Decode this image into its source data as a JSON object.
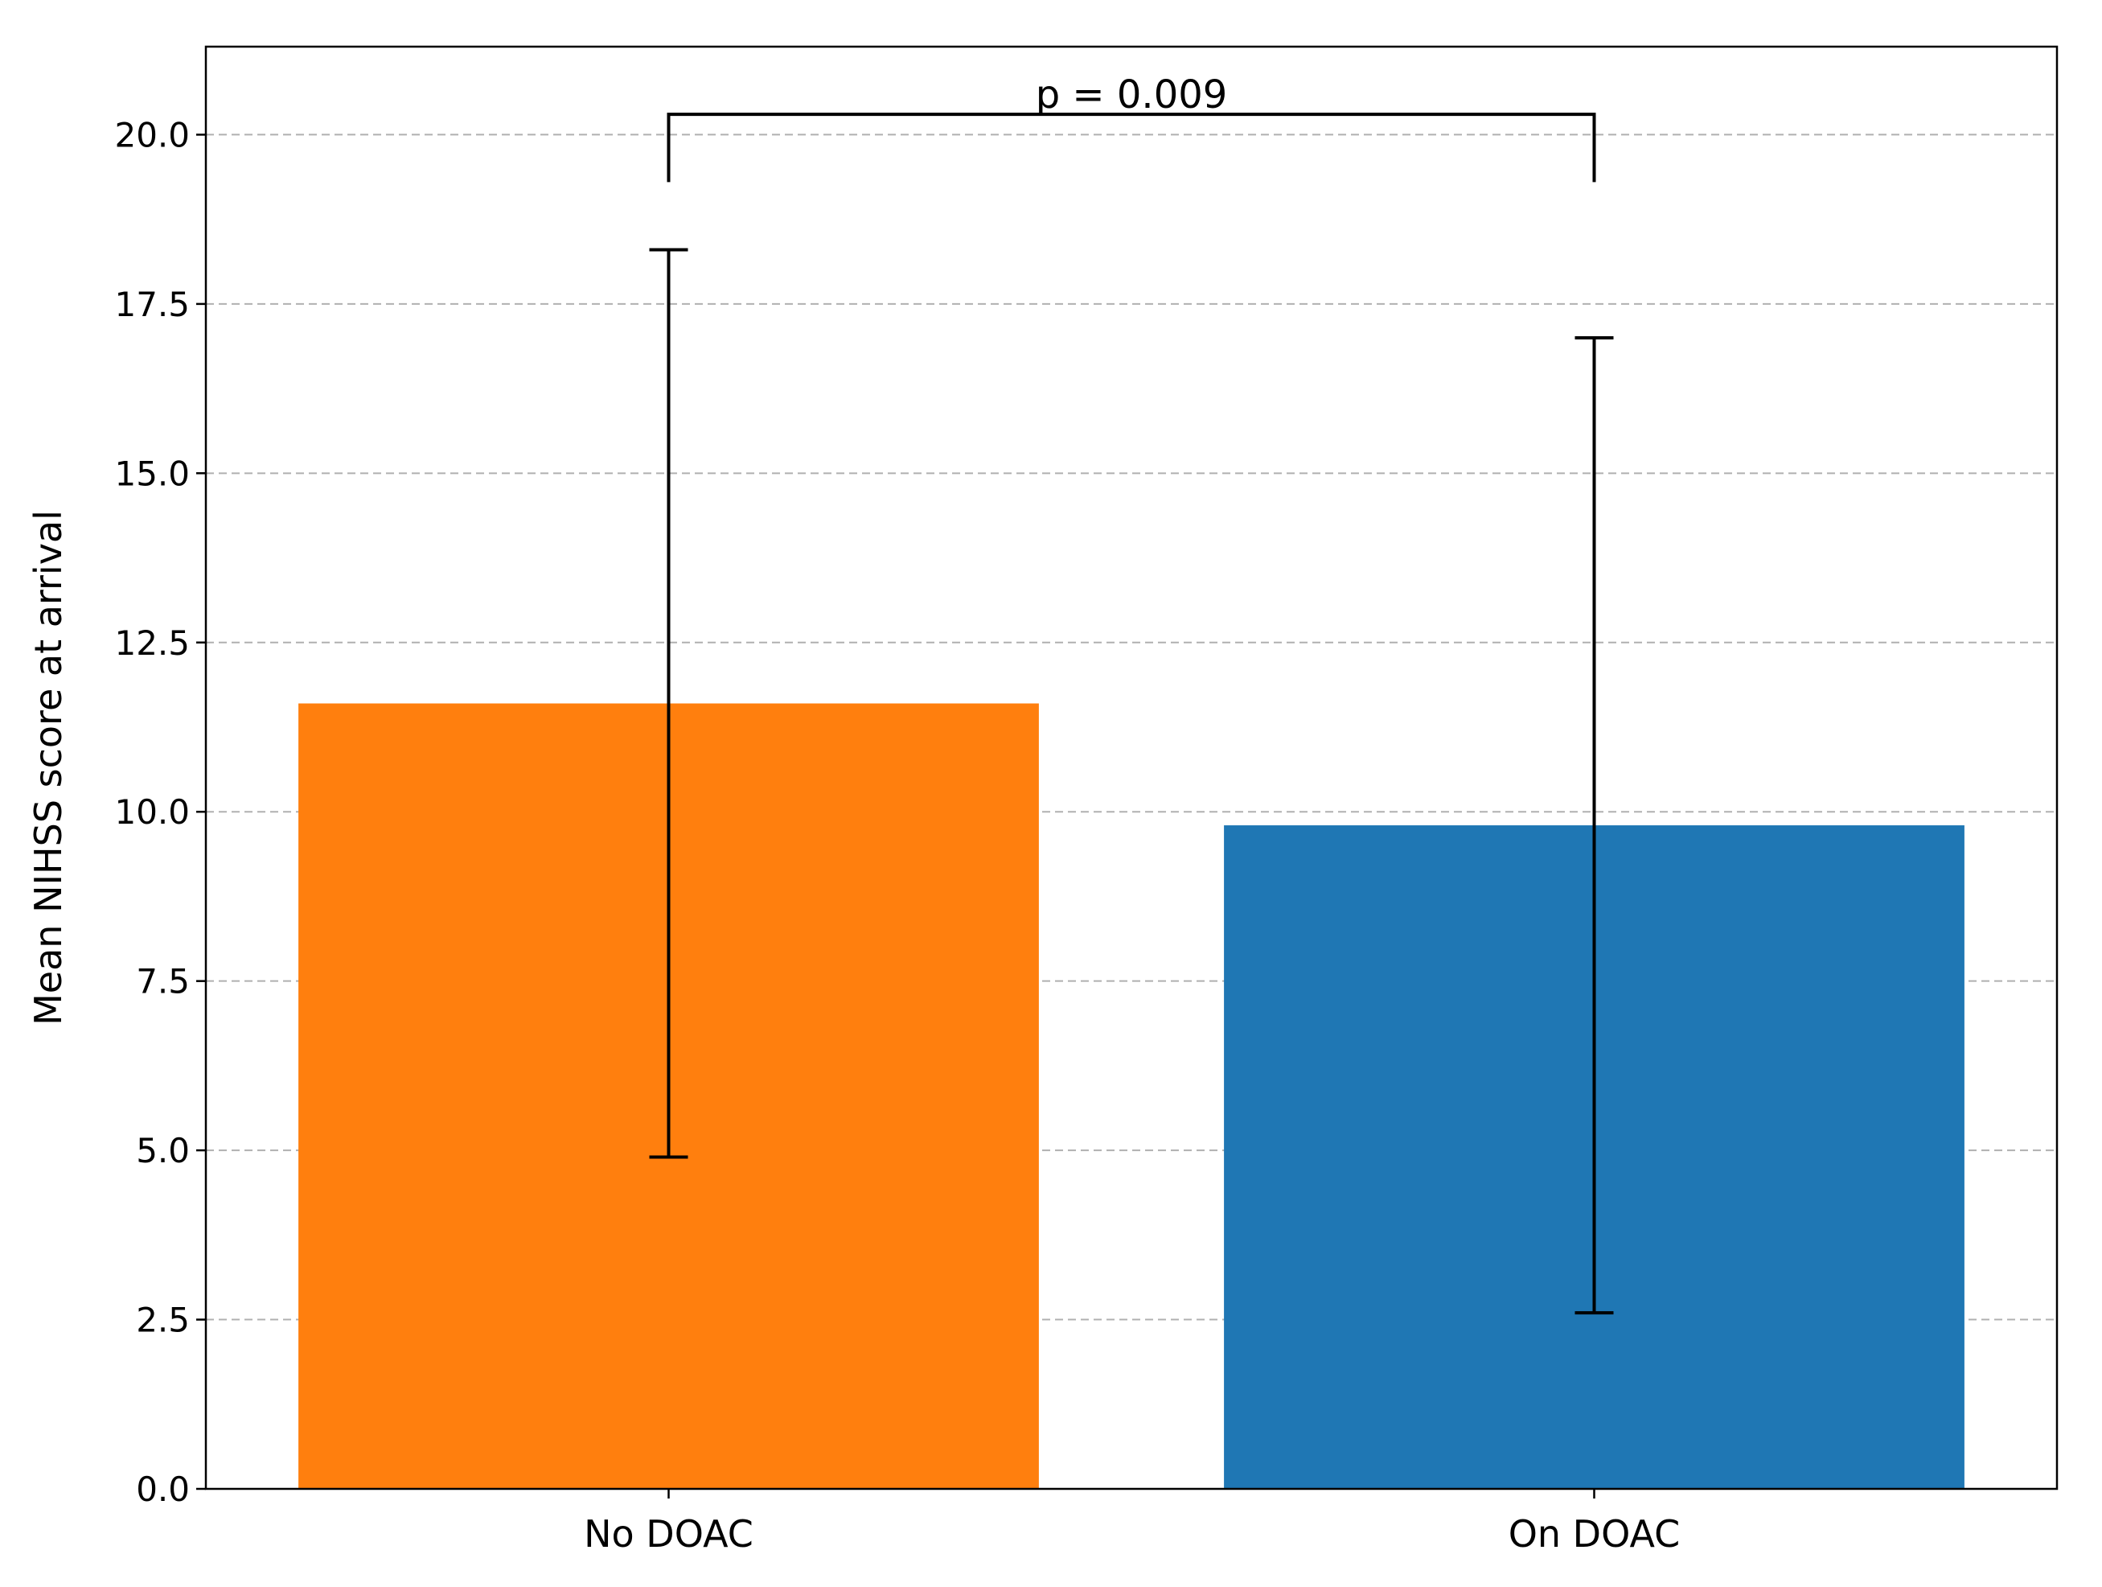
{
  "chart_data": {
    "type": "bar",
    "title": "",
    "xlabel": "",
    "ylabel": "Mean NIHSS score at arrival",
    "categories": [
      "No DOAC",
      "On DOAC"
    ],
    "values": [
      11.6,
      9.8
    ],
    "error_low": [
      4.9,
      2.6
    ],
    "error_high": [
      18.3,
      17.0
    ],
    "colors": [
      "#ff7f0e",
      "#1f77b4"
    ],
    "ylim": [
      0,
      21.3
    ],
    "yticks": [
      0.0,
      2.5,
      5.0,
      7.5,
      10.0,
      12.5,
      15.0,
      17.5,
      20.0
    ],
    "ytick_labels": [
      "0.0",
      "2.5",
      "5.0",
      "7.5",
      "10.0",
      "12.5",
      "15.0",
      "17.5",
      "20.0"
    ],
    "grid": "y-dashed",
    "annotation": {
      "text": "p = 0.009",
      "bracket_top": 20.3,
      "bracket_bottom": 19.3
    }
  }
}
